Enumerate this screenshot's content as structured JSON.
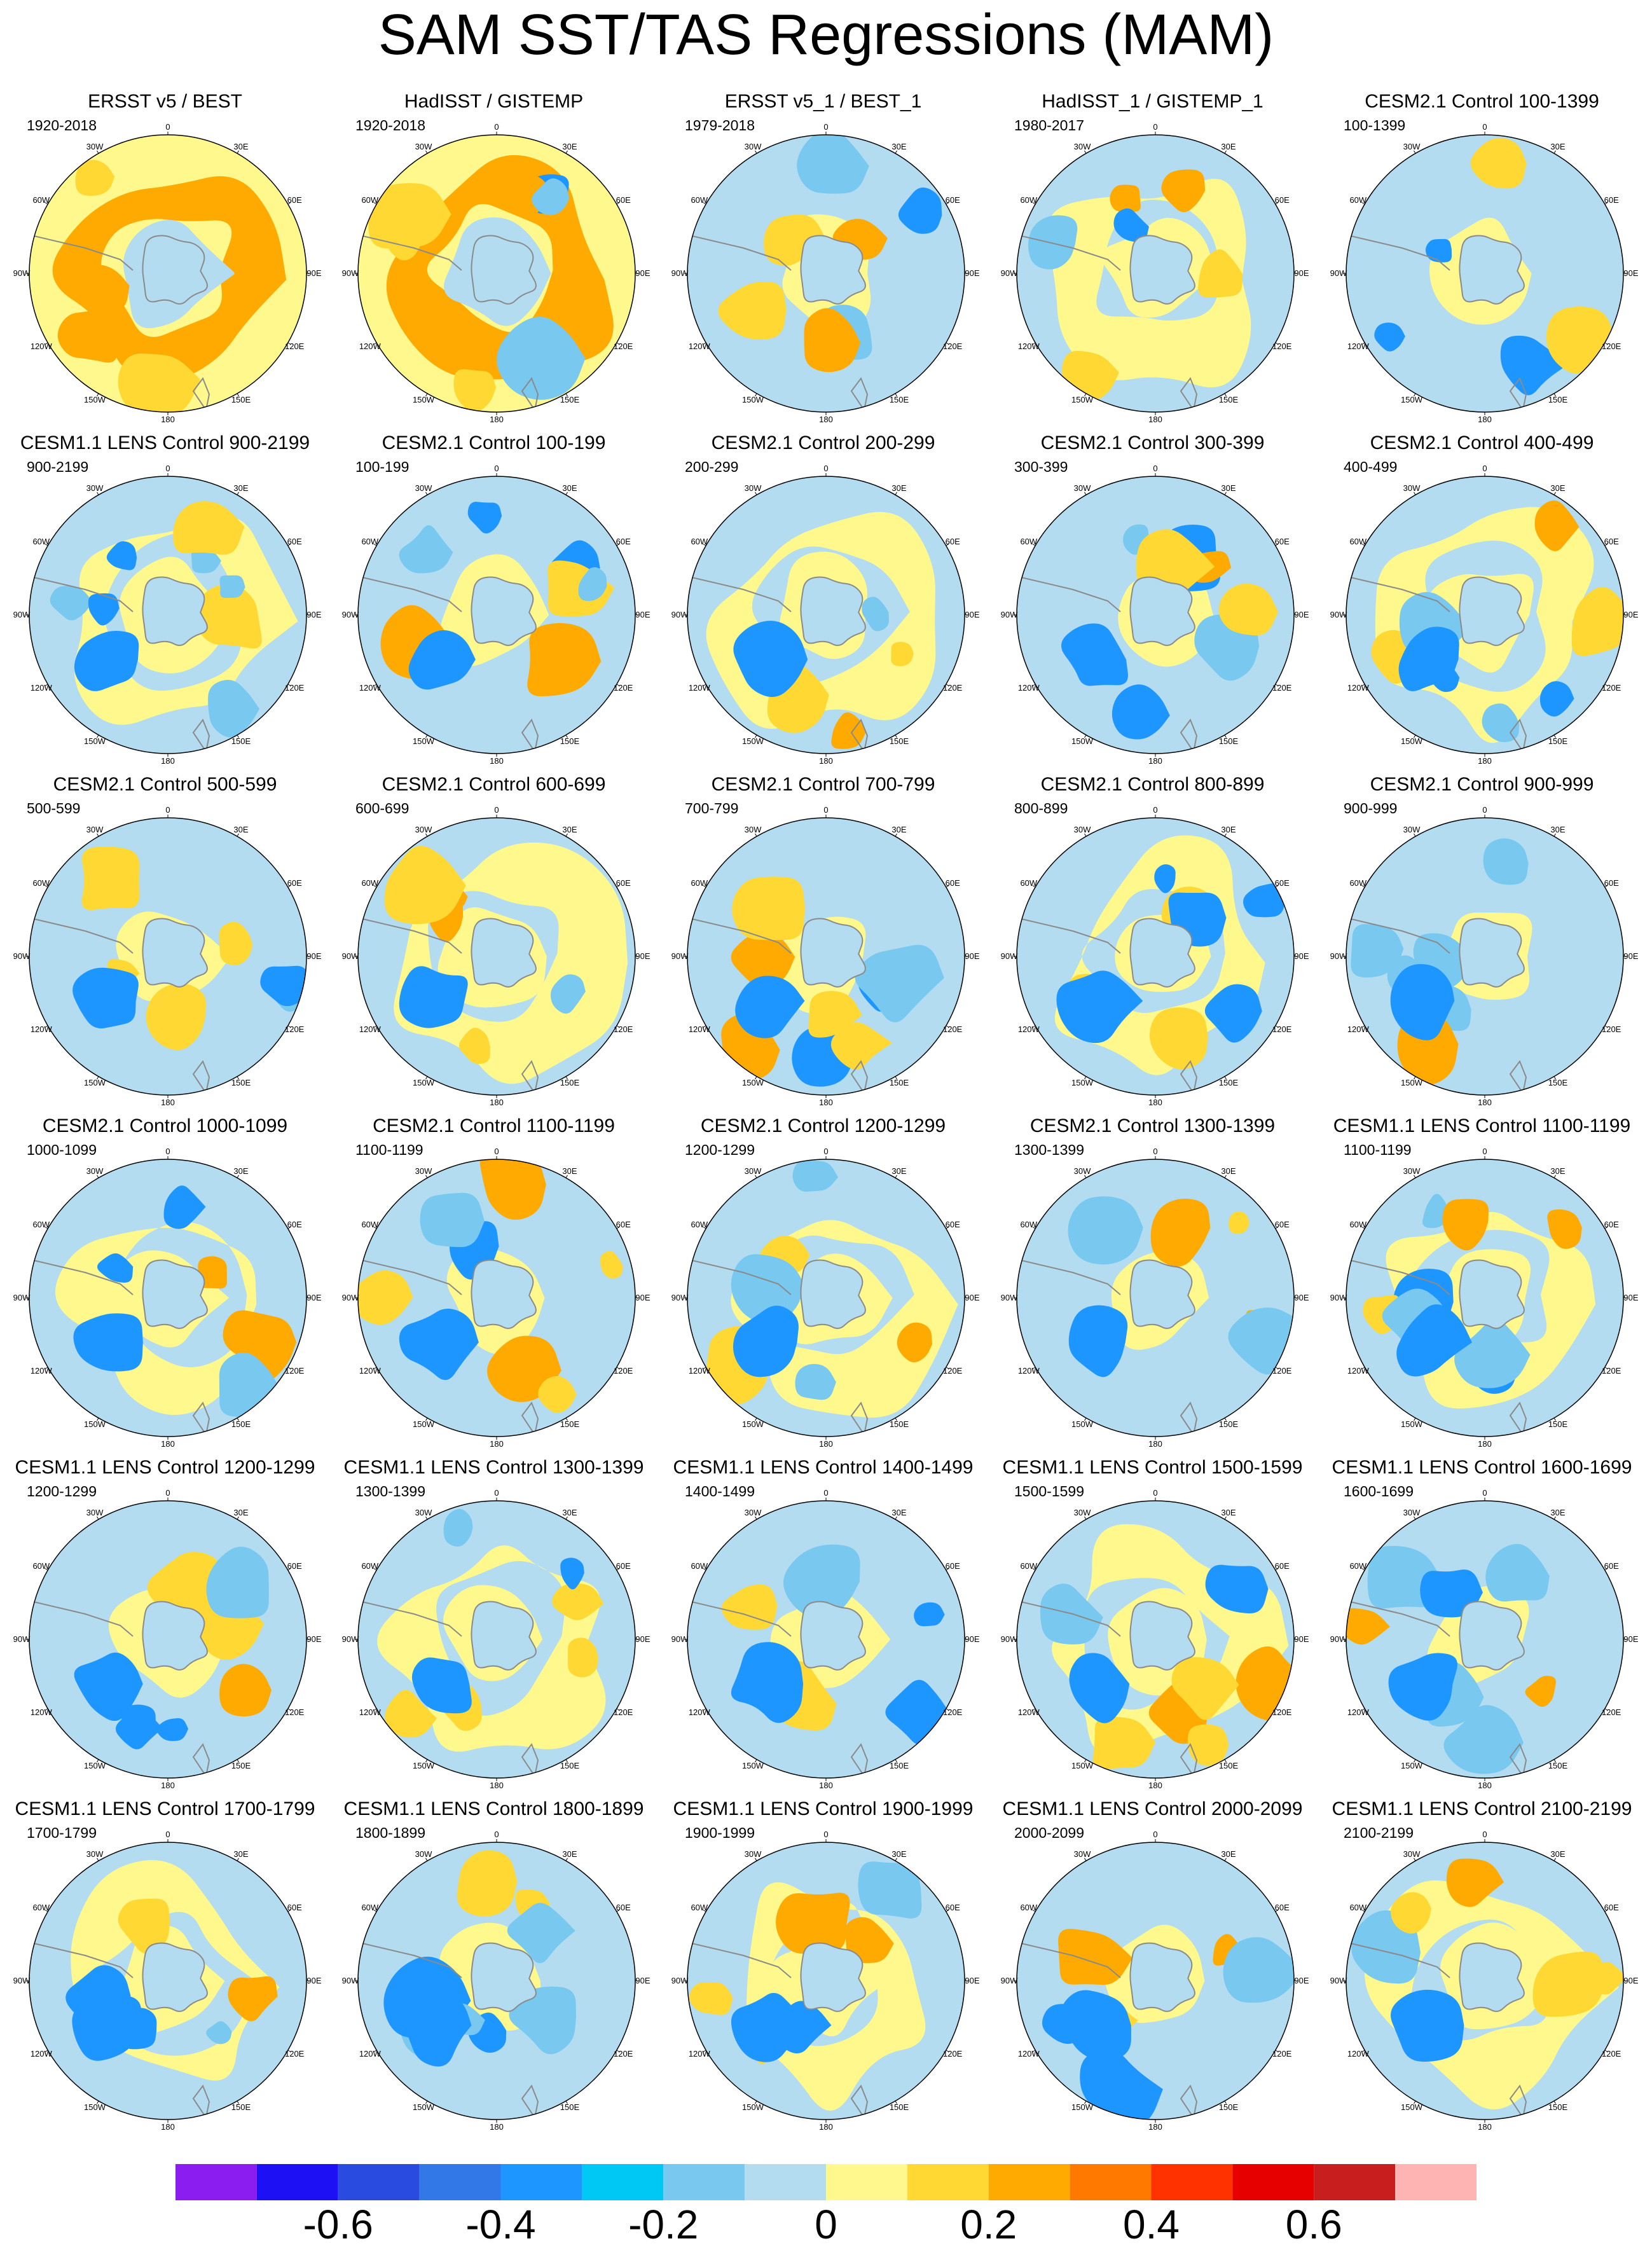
{
  "title": "SAM SST/TAS Regressions (MAM)",
  "longitude_labels": [
    "0",
    "30E",
    "60E",
    "90E",
    "120E",
    "150E",
    "180",
    "150W",
    "120W",
    "90W",
    "60W",
    "30W"
  ],
  "colorbar": {
    "colors": [
      "#8C1DF0",
      "#1E10F5",
      "#2A4BE0",
      "#3278E6",
      "#1E96FF",
      "#00C8F5",
      "#78C8F0",
      "#B4DCF0",
      "#FFF88C",
      "#FFD834",
      "#FFAA00",
      "#FF7800",
      "#FF3200",
      "#E60000",
      "#C81E1E",
      "#FFB4B4"
    ],
    "tick_labels": [
      "-0.6",
      "-0.4",
      "-0.2",
      "0",
      "0.2",
      "0.4",
      "0.6"
    ],
    "boundaries": [
      -0.7,
      -0.6,
      -0.5,
      -0.4,
      -0.3,
      -0.2,
      -0.1,
      0,
      0.1,
      0.2,
      0.3,
      0.4,
      0.5,
      0.6,
      0.7
    ]
  },
  "panels": [
    {
      "title": "ERSST v5 / BEST",
      "years": "1920-2018"
    },
    {
      "title": "HadISST / GISTEMP",
      "years": "1920-2018"
    },
    {
      "title": "ERSST v5_1 / BEST_1",
      "years": "1979-2018"
    },
    {
      "title": "HadISST_1 / GISTEMP_1",
      "years": "1980-2017"
    },
    {
      "title": "CESM2.1 Control 100-1399",
      "years": "100-1399"
    },
    {
      "title": "CESM1.1 LENS Control 900-2199",
      "years": "900-2199"
    },
    {
      "title": "CESM2.1 Control 100-199",
      "years": "100-199"
    },
    {
      "title": "CESM2.1 Control 200-299",
      "years": "200-299"
    },
    {
      "title": "CESM2.1 Control 300-399",
      "years": "300-399"
    },
    {
      "title": "CESM2.1 Control 400-499",
      "years": "400-499"
    },
    {
      "title": "CESM2.1 Control 500-599",
      "years": "500-599"
    },
    {
      "title": "CESM2.1 Control 600-699",
      "years": "600-699"
    },
    {
      "title": "CESM2.1 Control 700-799",
      "years": "700-799"
    },
    {
      "title": "CESM2.1 Control 800-899",
      "years": "800-899"
    },
    {
      "title": "CESM2.1 Control 900-999",
      "years": "900-999"
    },
    {
      "title": "CESM2.1 Control 1000-1099",
      "years": "1000-1099"
    },
    {
      "title": "CESM2.1 Control 1100-1199",
      "years": "1100-1199"
    },
    {
      "title": "CESM2.1 Control 1200-1299",
      "years": "1200-1299"
    },
    {
      "title": "CESM2.1 Control 1300-1399",
      "years": "1300-1399"
    },
    {
      "title": "CESM1.1 LENS Control 1100-1199",
      "years": "1100-1199"
    },
    {
      "title": "CESM1.1 LENS Control 1200-1299",
      "years": "1200-1299"
    },
    {
      "title": "CESM1.1 LENS Control 1300-1399",
      "years": "1300-1399"
    },
    {
      "title": "CESM1.1 LENS Control 1400-1499",
      "years": "1400-1499"
    },
    {
      "title": "CESM1.1 LENS Control 1500-1599",
      "years": "1500-1599"
    },
    {
      "title": "CESM1.1 LENS Control 1600-1699",
      "years": "1600-1699"
    },
    {
      "title": "CESM1.1 LENS Control 1700-1799",
      "years": "1700-1799"
    },
    {
      "title": "CESM1.1 LENS Control 1800-1899",
      "years": "1800-1899"
    },
    {
      "title": "CESM1.1 LENS Control 1900-1999",
      "years": "1900-1999"
    },
    {
      "title": "CESM1.1 LENS Control 2000-2099",
      "years": "2000-2099"
    },
    {
      "title": "CESM1.1 LENS Control 2100-2199",
      "years": "2100-2199"
    }
  ]
}
